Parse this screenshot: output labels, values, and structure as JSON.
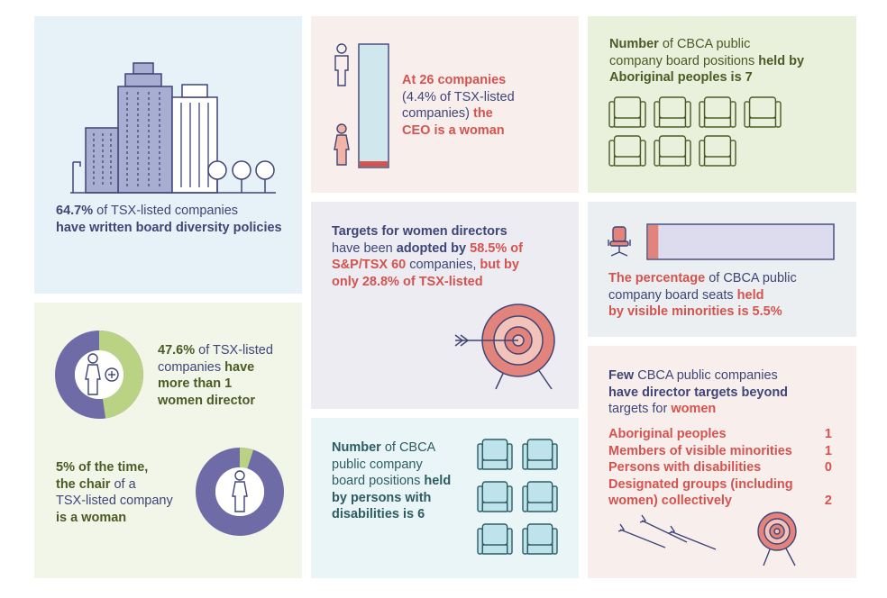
{
  "colors": {
    "navy": "#3f4577",
    "red": "#d5534e",
    "olive": "#4c5a24",
    "teal": "#2d5c63",
    "light_blue_bg": "#e7f1f8",
    "light_green_bg": "#f2f6e9",
    "pink_bg": "#f8efed",
    "lavender_bg": "#ececf2",
    "mint_bg": "#e9f5f6",
    "grey_bg": "#ebeff1"
  },
  "policies": {
    "value": "64.7%",
    "text_1": " of TSX-listed companies",
    "text_2": "have written board diversity policies"
  },
  "ceo": {
    "value": "At 26 companies",
    "text_1": "(4.4% of TSX-listed",
    "text_2": "companies)",
    "bold_the": "the",
    "text_3": "CEO is a woman",
    "share": 0.044
  },
  "aboriginal": {
    "lead": "Number",
    "text_1": " of CBCA public",
    "text_2": "company board positions ",
    "bold_1": "held by",
    "bold_2": "Aboriginal peoples is 7",
    "count": 7
  },
  "targets": {
    "bold_1": "Targets for women directors",
    "text_1": "have been ",
    "bold_2": "adopted by ",
    "value_1": "58.5% of",
    "value_2": "S&P/TSX 60",
    "text_2": " companies, ",
    "bold_3": "but by",
    "value_3": "only 28.8% of TSX-listed"
  },
  "visible_minorities": {
    "lead": "The percentage",
    "text_1": " of CBCA public",
    "text_2": "company board seats ",
    "bold_1": "held",
    "value": "by visible minorities is 5.5%",
    "share": 0.055
  },
  "multi_women": {
    "value": "47.6%",
    "text_1": " of TSX-listed",
    "text_2": "companies ",
    "bold_1": "have",
    "bold_2": "more than 1",
    "bold_3": "women director",
    "share": 0.476
  },
  "chair": {
    "bold_1": "5% of the time,",
    "bold_2": "the chair",
    "text_1": " of a",
    "text_2": "TSX-listed company",
    "bold_3": "is a woman",
    "share": 0.05
  },
  "disabilities": {
    "lead": "Number",
    "text_1": " of CBCA",
    "text_2": "public company",
    "text_3": "board positions ",
    "bold_1": "held",
    "bold_2": "by persons with",
    "bold_3": "disabilities is 6",
    "count": 6
  },
  "beyond": {
    "lead": "Few",
    "text_1": " CBCA public companies",
    "bold_1": "have director targets beyond",
    "text_2": "targets for ",
    "bold_2": "women",
    "rows": [
      {
        "label": "Aboriginal peoples",
        "value": "1"
      },
      {
        "label": "Members of visible minorities",
        "value": "1"
      },
      {
        "label": "Persons with disabilities",
        "value": "0"
      },
      {
        "label": "Designated groups (including",
        "value": ""
      },
      {
        "label": "women) collectively",
        "value": "2"
      }
    ]
  }
}
